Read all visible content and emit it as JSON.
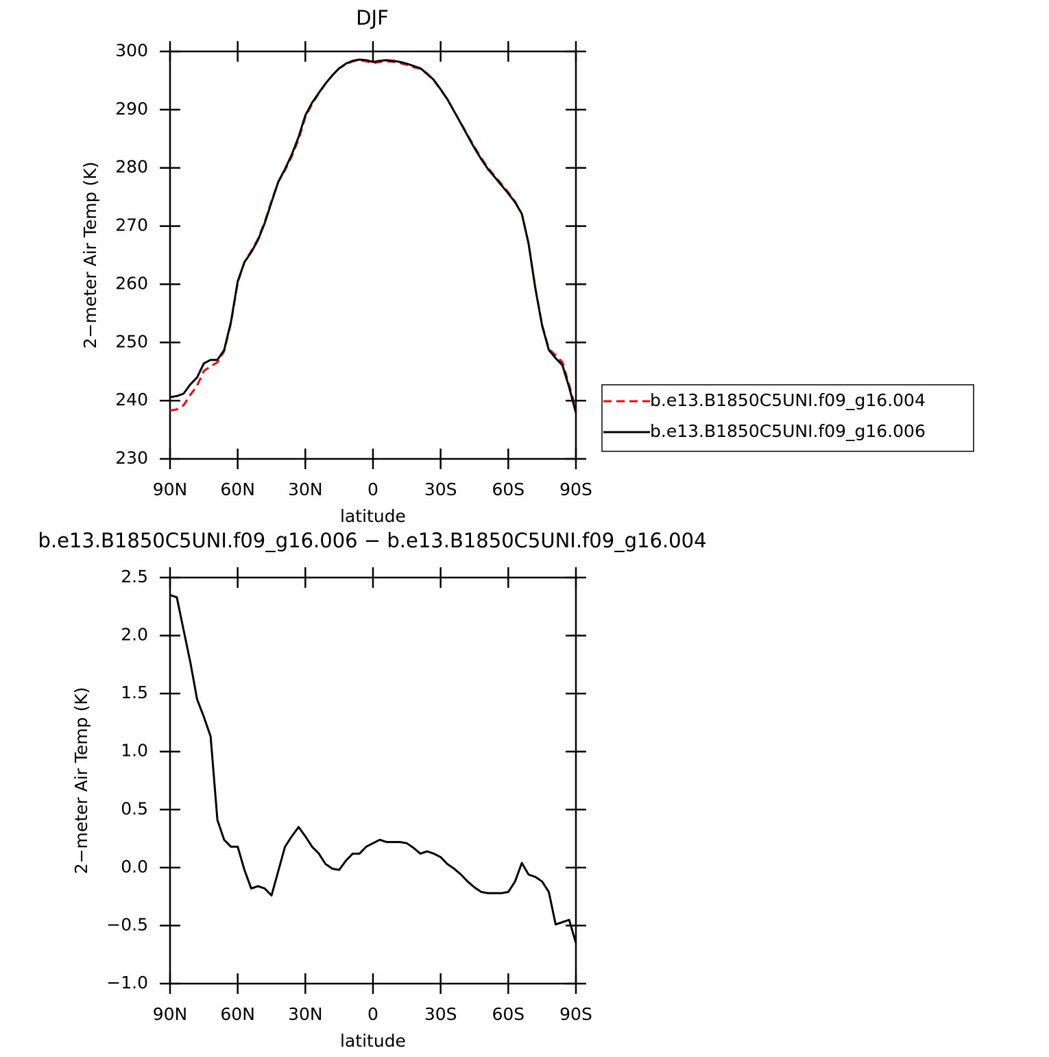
{
  "chart_data": [
    {
      "type": "line",
      "title": "DJF",
      "xlabel": "latitude",
      "ylabel": "2−meter Air Temp (K)",
      "x": [
        90,
        87,
        84,
        81,
        78,
        75,
        72,
        69,
        66,
        63,
        60,
        57,
        54,
        51,
        48,
        45,
        42,
        39,
        36,
        33,
        30,
        27,
        24,
        21,
        18,
        15,
        12,
        9,
        6,
        3,
        0,
        -3,
        -6,
        -9,
        -12,
        -15,
        -18,
        -21,
        -24,
        -27,
        -30,
        -33,
        -36,
        -39,
        -42,
        -45,
        -48,
        -51,
        -54,
        -57,
        -60,
        -63,
        -66,
        -69,
        -72,
        -75,
        -78,
        -81,
        -84,
        -87,
        -90
      ],
      "series": [
        {
          "name": "b.e13.B1850C5UNI.f09_g16.004",
          "color": "#ff0000",
          "linestyle": "dashed",
          "values": [
            238.3,
            238.5,
            239.2,
            241.0,
            242.6,
            245.1,
            245.9,
            246.6,
            248.5,
            253.3,
            260.3,
            263.8,
            265.7,
            267.8,
            270.7,
            274.3,
            277.6,
            279.6,
            282.0,
            284.9,
            288.7,
            291.0,
            292.8,
            294.5,
            295.9,
            297.1,
            297.8,
            298.3,
            298.5,
            298.3,
            298.0,
            298.2,
            298.3,
            298.2,
            298.0,
            297.7,
            297.3,
            297.0,
            296.1,
            295.0,
            293.4,
            291.8,
            289.7,
            287.7,
            285.6,
            283.6,
            281.7,
            280.0,
            278.6,
            277.2,
            275.8,
            274.2,
            272.1,
            267.1,
            259.4,
            253.0,
            248.9,
            247.8,
            246.6,
            242.7,
            238.5
          ]
        },
        {
          "name": "b.e13.B1850C5UNI.f09_g16.006",
          "color": "#000000",
          "linestyle": "solid",
          "values": [
            240.6,
            240.8,
            241.2,
            242.8,
            244.0,
            246.4,
            247.0,
            247.0,
            248.7,
            253.5,
            260.5,
            263.8,
            265.5,
            267.6,
            270.5,
            274.1,
            277.6,
            279.8,
            282.3,
            285.3,
            289.0,
            291.2,
            292.9,
            294.5,
            295.9,
            297.1,
            297.9,
            298.4,
            298.6,
            298.5,
            298.2,
            298.4,
            298.5,
            298.4,
            298.2,
            297.9,
            297.5,
            297.1,
            296.2,
            295.1,
            293.5,
            291.8,
            289.7,
            287.6,
            285.5,
            283.4,
            281.5,
            279.8,
            278.4,
            277.0,
            275.6,
            274.1,
            272.1,
            267.0,
            259.3,
            252.9,
            248.7,
            247.3,
            246.1,
            242.3,
            237.9
          ]
        }
      ],
      "xlim": [
        90,
        -90
      ],
      "xticks": [
        {
          "value": 90,
          "label": "90N"
        },
        {
          "value": 60,
          "label": "60N"
        },
        {
          "value": 30,
          "label": "30N"
        },
        0,
        {
          "value": -30,
          "label": "30S"
        },
        {
          "value": -60,
          "label": "60S"
        },
        {
          "value": -90,
          "label": "90S"
        }
      ],
      "ylim": [
        230,
        300
      ],
      "yticks": [
        230,
        240,
        250,
        260,
        270,
        280,
        290,
        300
      ],
      "legend": "right"
    },
    {
      "type": "line",
      "title": "b.e13.B1850C5UNI.f09_g16.006 − b.e13.B1850C5UNI.f09_g16.004",
      "xlabel": "latitude",
      "ylabel": "2−meter Air Temp (K)",
      "x": [
        90,
        87,
        84,
        81,
        78,
        75,
        72,
        69,
        66,
        63,
        60,
        57,
        54,
        51,
        48,
        45,
        42,
        39,
        36,
        33,
        30,
        27,
        24,
        21,
        18,
        15,
        12,
        9,
        6,
        3,
        0,
        -3,
        -6,
        -9,
        -12,
        -15,
        -18,
        -21,
        -24,
        -27,
        -30,
        -33,
        -36,
        -39,
        -42,
        -45,
        -48,
        -51,
        -54,
        -57,
        -60,
        -63,
        -66,
        -69,
        -72,
        -75,
        -78,
        -81,
        -84,
        -87,
        -90
      ],
      "values": [
        2.35,
        2.33,
        2.05,
        1.77,
        1.45,
        1.3,
        1.13,
        0.41,
        0.24,
        0.18,
        0.18,
        -0.02,
        -0.18,
        -0.16,
        -0.18,
        -0.24,
        -0.03,
        0.18,
        0.27,
        0.35,
        0.27,
        0.18,
        0.12,
        0.03,
        -0.01,
        -0.02,
        0.06,
        0.12,
        0.12,
        0.18,
        0.21,
        0.24,
        0.22,
        0.22,
        0.22,
        0.21,
        0.17,
        0.12,
        0.14,
        0.12,
        0.09,
        0.03,
        -0.01,
        -0.06,
        -0.12,
        -0.17,
        -0.21,
        -0.22,
        -0.22,
        -0.22,
        -0.21,
        -0.12,
        0.04,
        -0.06,
        -0.08,
        -0.12,
        -0.21,
        -0.49,
        -0.47,
        -0.45,
        -0.65
      ],
      "color": "#000000",
      "xlim": [
        90,
        -90
      ],
      "xticks": [
        {
          "value": 90,
          "label": "90N"
        },
        {
          "value": 60,
          "label": "60N"
        },
        {
          "value": 30,
          "label": "30N"
        },
        0,
        {
          "value": -30,
          "label": "30S"
        },
        {
          "value": -60,
          "label": "60S"
        },
        {
          "value": -90,
          "label": "90S"
        }
      ],
      "ylim": [
        -1,
        2.5
      ],
      "yticks": [
        {
          "value": -1,
          "label": "−1.0"
        },
        {
          "value": -0.5,
          "label": "−0.5"
        },
        {
          "value": 0,
          "label": "0.0"
        },
        0.5,
        {
          "value": 1,
          "label": "1.0"
        },
        1.5,
        {
          "value": 2,
          "label": "2.0"
        },
        2.5
      ]
    }
  ]
}
